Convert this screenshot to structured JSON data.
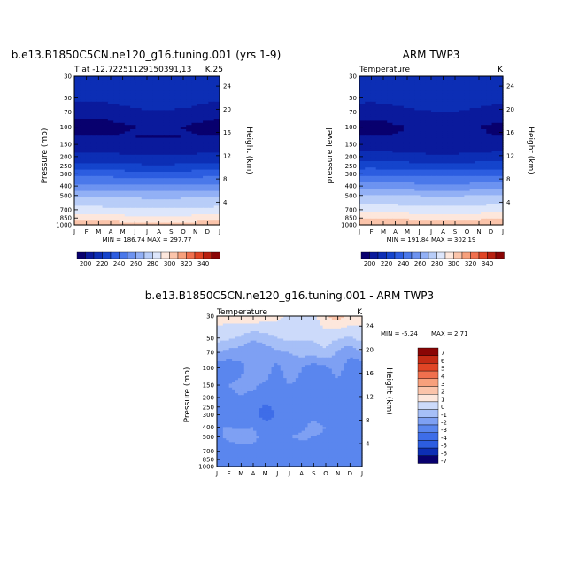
{
  "panels": [
    {
      "title": "b.e13.B1850C5CN.ne120_g16.tuning.001 (yrs 1-9)",
      "left_label": "T at -12.72251129150391,13",
      "right_label": "K.25",
      "ylabel": "Pressure (mb)",
      "ylabel2": "Height (km)",
      "minmax": "MIN = 186.74  MAX = 297.77"
    },
    {
      "title": "ARM TWP3",
      "left_label": "Temperature",
      "right_label": "K",
      "ylabel": "pressure level",
      "ylabel2": "Height (km)",
      "minmax": "MIN = 191.84  MAX = 302.19"
    },
    {
      "title": "b.e13.B1850C5CN.ne120_g16.tuning.001 - ARM TWP3",
      "left_label": "Temperature",
      "right_label": "K",
      "ylabel": "Pressure (mb)",
      "ylabel2": "Height (km)",
      "minmax_min": "MIN =  -5.24",
      "minmax_max": "MAX =    2.71"
    }
  ],
  "colors": {
    "temp_palette": [
      "#08006e",
      "#0a1a9c",
      "#0c2eb5",
      "#1444cc",
      "#2c5de0",
      "#4a78ea",
      "#6d93f0",
      "#92b0f5",
      "#b8cdf8",
      "#dde6fb",
      "#fde7dc",
      "#fbc4aa",
      "#f7a07c",
      "#f0704e",
      "#e04525",
      "#b82010",
      "#8a0505"
    ],
    "diff_palette": [
      "#08006e",
      "#0c2eb5",
      "#2c5de0",
      "#3e6de8",
      "#5a86ee",
      "#7ea0f3",
      "#a6bff7",
      "#ccdafa",
      "#fde7dc",
      "#fbc4aa",
      "#f7a07c",
      "#f0704e",
      "#e04525",
      "#c42b15",
      "#8a0505"
    ]
  },
  "chart_data": [
    {
      "type": "heatmap",
      "title": "b.e13.B1850C5CN.ne120_g16.tuning.001 (yrs 1-9)",
      "x": [
        "J",
        "F",
        "M",
        "A",
        "M",
        "J",
        "J",
        "A",
        "S",
        "O",
        "N",
        "D",
        "J"
      ],
      "y_pressure_ticks": [
        30,
        50,
        70,
        100,
        150,
        200,
        250,
        300,
        400,
        500,
        700,
        850,
        1000
      ],
      "y_height_ticks": [
        4,
        8,
        12,
        16,
        20,
        24
      ],
      "ylabel": "Pressure (mb)",
      "ylabel2": "Height (km)",
      "levels_pressure": [
        30,
        50,
        70,
        100,
        150,
        200,
        250,
        300,
        400,
        500,
        700,
        850,
        1000
      ],
      "profile": [
        205,
        205,
        196,
        188,
        193,
        202,
        213,
        225,
        242,
        258,
        272,
        284,
        295
      ],
      "min": 186.74,
      "max": 297.77,
      "colorbar_labels": [
        200,
        220,
        240,
        260,
        280,
        300,
        320,
        340
      ]
    },
    {
      "type": "heatmap",
      "title": "ARM TWP3",
      "x": [
        "J",
        "F",
        "M",
        "A",
        "M",
        "J",
        "J",
        "A",
        "S",
        "O",
        "N",
        "D",
        "J"
      ],
      "y_pressure_ticks": [
        30,
        50,
        70,
        100,
        150,
        200,
        250,
        300,
        400,
        500,
        700,
        850,
        1000
      ],
      "y_height_ticks": [
        4,
        8,
        12,
        16,
        20,
        24
      ],
      "ylabel": "pressure level",
      "ylabel2": "Height (km)",
      "levels_pressure": [
        30,
        50,
        70,
        100,
        150,
        200,
        250,
        300,
        400,
        500,
        700,
        850,
        1000
      ],
      "profile": [
        207,
        206,
        197,
        190,
        194,
        203,
        215,
        227,
        244,
        260,
        275,
        287,
        300
      ],
      "min": 191.84,
      "max": 302.19,
      "colorbar_labels": [
        200,
        220,
        240,
        260,
        280,
        300,
        320,
        340
      ]
    },
    {
      "type": "heatmap",
      "title": "b.e13.B1850C5CN.ne120_g16.tuning.001 - ARM TWP3",
      "x": [
        "J",
        "F",
        "M",
        "A",
        "M",
        "J",
        "J",
        "A",
        "S",
        "O",
        "N",
        "D",
        "J"
      ],
      "y_pressure_ticks": [
        30,
        50,
        70,
        100,
        150,
        200,
        250,
        300,
        400,
        500,
        700,
        850,
        1000
      ],
      "y_height_ticks": [
        4,
        8,
        12,
        16,
        20,
        24
      ],
      "ylabel": "Pressure (mb)",
      "ylabel2": "Height (km)",
      "levels_pressure": [
        30,
        50,
        70,
        100,
        150,
        200,
        250,
        300,
        400,
        500,
        700,
        850,
        1000
      ],
      "diff_rows": [
        [
          0.5,
          0.4,
          0.6,
          0.8,
          0.6,
          0.3,
          -0.2,
          -0.5,
          -0.3,
          0.9,
          1.5,
          0.8,
          0.5
        ],
        [
          -0.6,
          -0.8,
          -1.2,
          -1.8,
          -1.5,
          -1.0,
          -0.7,
          -0.9,
          -0.8,
          -0.5,
          -0.9,
          -1.2,
          -0.6
        ],
        [
          -2.0,
          -2.4,
          -2.6,
          -3.0,
          -2.6,
          -2.2,
          -2.0,
          -1.6,
          -1.6,
          -1.2,
          -2.2,
          -2.8,
          -2.0
        ],
        [
          -3.8,
          -3.6,
          -3.2,
          -2.6,
          -2.4,
          -3.4,
          -2.2,
          -3.0,
          -3.6,
          -3.2,
          -2.6,
          -3.5,
          -3.8
        ],
        [
          -3.4,
          -3.0,
          -2.8,
          -2.8,
          -3.2,
          -3.6,
          -3.0,
          -3.4,
          -3.7,
          -3.5,
          -3.2,
          -3.6,
          -3.4
        ],
        [
          -3.5,
          -3.2,
          -3.0,
          -3.3,
          -3.6,
          -3.7,
          -3.5,
          -3.6,
          -3.4,
          -3.6,
          -3.8,
          -3.6,
          -3.5
        ],
        [
          -3.4,
          -3.3,
          -3.3,
          -3.6,
          -4.2,
          -3.8,
          -3.5,
          -3.4,
          -3.3,
          -3.5,
          -3.8,
          -3.7,
          -3.4
        ],
        [
          -3.2,
          -3.2,
          -3.4,
          -3.7,
          -4.5,
          -3.9,
          -3.4,
          -3.3,
          -3.2,
          -3.4,
          -3.6,
          -3.6,
          -3.2
        ],
        [
          -3.0,
          -3.0,
          -3.1,
          -3.0,
          -3.5,
          -3.5,
          -3.2,
          -3.1,
          -2.8,
          -3.0,
          -3.4,
          -3.3,
          -3.0
        ],
        [
          -3.2,
          -2.8,
          -2.7,
          -2.8,
          -3.3,
          -3.3,
          -3.0,
          -2.9,
          -3.0,
          -3.1,
          -3.3,
          -3.2,
          -3.2
        ],
        [
          -3.5,
          -3.4,
          -3.3,
          -3.2,
          -3.4,
          -3.5,
          -3.4,
          -3.3,
          -3.3,
          -3.4,
          -3.5,
          -3.5,
          -3.5
        ],
        [
          -3.4,
          -3.5,
          -3.6,
          -3.4,
          -3.3,
          -3.6,
          -3.5,
          -3.4,
          -3.6,
          -3.5,
          -3.4,
          -3.5,
          -3.4
        ],
        [
          -3.3,
          -3.4,
          -3.5,
          -3.5,
          -3.4,
          -3.5,
          -3.6,
          -3.5,
          -3.5,
          -3.4,
          -3.3,
          -3.4,
          -3.3
        ]
      ],
      "min": -5.24,
      "max": 2.71,
      "colorbar_labels": [
        7,
        6,
        5,
        4,
        3,
        2,
        1,
        0,
        -1,
        -2,
        -3,
        -4,
        -5,
        -6,
        -7
      ]
    }
  ]
}
